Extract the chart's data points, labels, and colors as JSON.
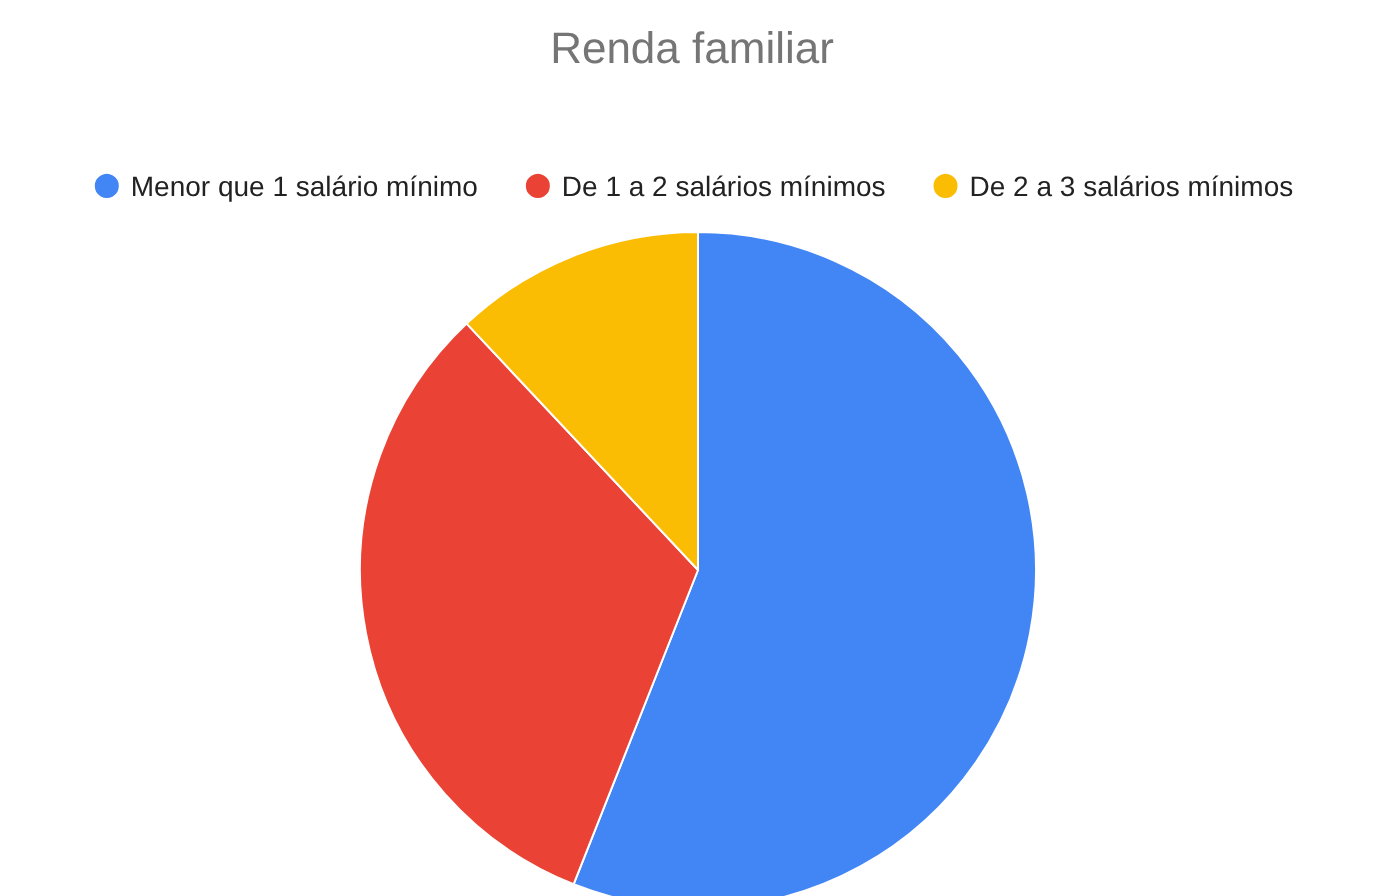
{
  "chart_data": {
    "type": "pie",
    "title": "Renda familiar",
    "categories": [
      "Menor que 1 salário mínimo",
      "De 1 a 2 salários mínimos",
      "De 2 a 3 salários mínimos"
    ],
    "values": [
      56,
      32,
      12
    ],
    "colors": [
      "#4285f4",
      "#ea4335",
      "#fbbc04"
    ],
    "legend": "top"
  }
}
